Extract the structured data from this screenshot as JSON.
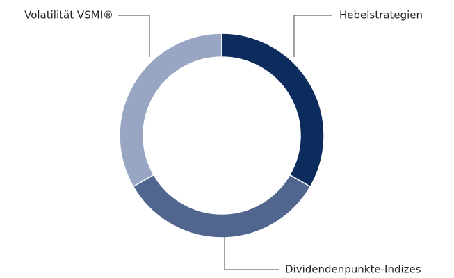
{
  "chart_data": {
    "type": "donut",
    "categories": [
      "Hebelstrategien",
      "Dividendenpunkte-Indizes",
      "Volatilität VSMI®"
    ],
    "values": [
      33.3,
      33.3,
      33.3
    ],
    "colors": [
      "#0b2c5d",
      "#51668f",
      "#98a6c3"
    ]
  }
}
